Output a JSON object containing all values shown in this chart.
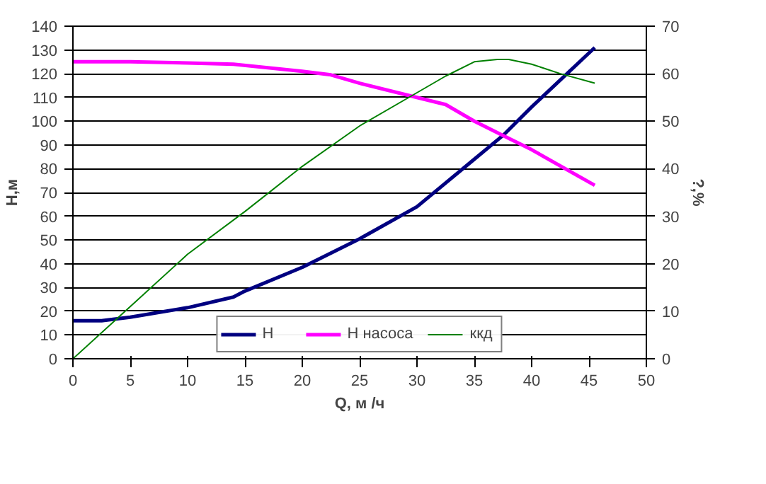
{
  "chart_data": {
    "type": "line",
    "xlabel": "Q, м /ч",
    "ylabel": "H,м",
    "y2label": "?,%",
    "xlim": [
      0,
      50
    ],
    "xticks": [
      0,
      5,
      10,
      15,
      20,
      25,
      30,
      35,
      40,
      45,
      50
    ],
    "ylim": [
      0,
      140
    ],
    "yticks": [
      0,
      10,
      20,
      30,
      40,
      50,
      60,
      70,
      80,
      90,
      100,
      110,
      120,
      130,
      140
    ],
    "y2lim": [
      0,
      70
    ],
    "y2ticks": [
      0,
      10,
      20,
      30,
      40,
      50,
      60,
      70
    ],
    "grid": "y",
    "legend": "bottom",
    "marker": "none",
    "series": [
      {
        "name": "H",
        "color": "#000080",
        "x": [
          0,
          2.5,
          5,
          10,
          14,
          15,
          20,
          25,
          30,
          35,
          37.5,
          40,
          45.5
        ],
        "values": [
          16,
          16,
          17.5,
          21.5,
          26,
          28.5,
          38.5,
          50.5,
          64,
          84,
          94,
          106,
          131
        ]
      },
      {
        "name": "H насоса",
        "color": "#ff00ff",
        "x": [
          0,
          5,
          10,
          14,
          20,
          22.5,
          25,
          30,
          32.5,
          35,
          37.5,
          40,
          45.5
        ],
        "values": [
          125,
          125,
          124.5,
          124,
          121,
          119.5,
          116,
          110,
          107,
          100,
          94,
          88,
          73
        ]
      },
      {
        "name": "ккд",
        "color": "#008000",
        "axis": "y2",
        "x": [
          0,
          5,
          10,
          15,
          20,
          25,
          30,
          32.5,
          35,
          37,
          38,
          40,
          42.5,
          45.5
        ],
        "values": [
          0,
          11,
          22,
          31,
          40.5,
          49,
          56,
          59.5,
          62.5,
          63,
          63,
          62,
          60,
          58
        ]
      }
    ]
  }
}
